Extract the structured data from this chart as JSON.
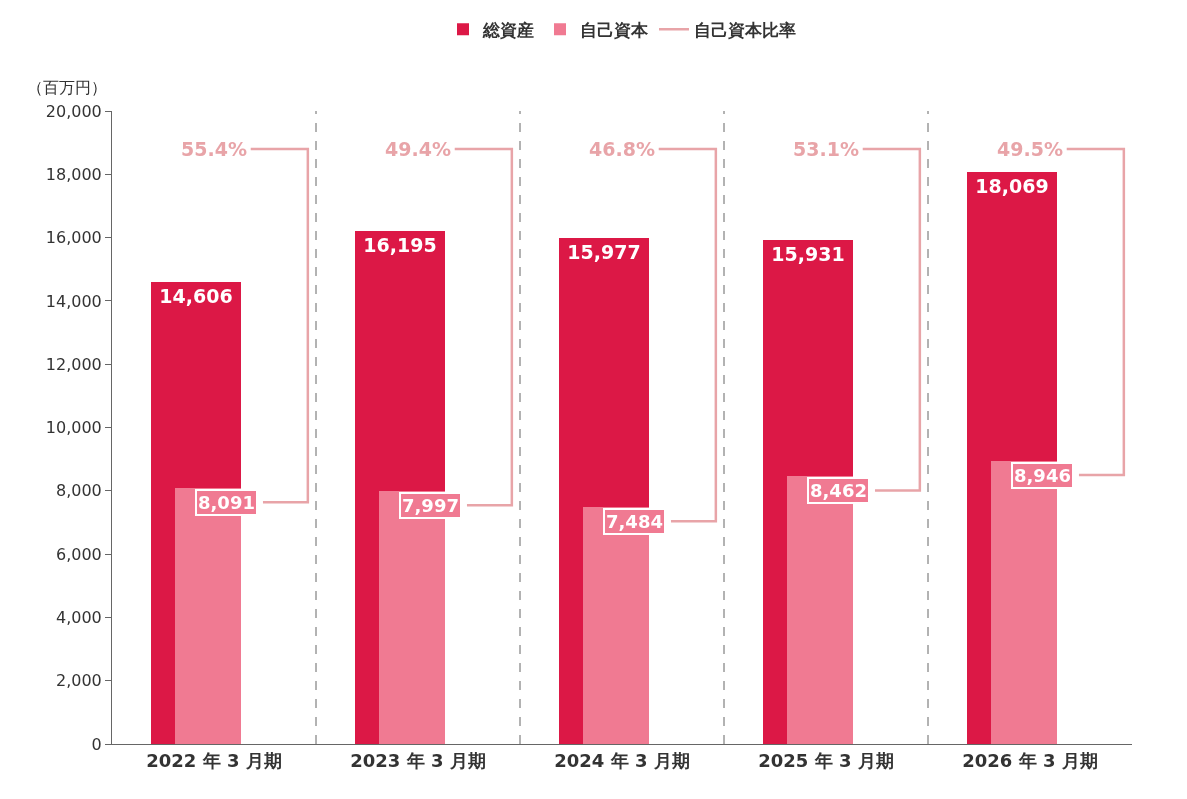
{
  "chart_data": {
    "type": "bar",
    "ylabel": "（百万円）",
    "categories": [
      "2022 年 3 月期",
      "2023 年 3 月期",
      "2024 年 3 月期",
      "2025 年 3 月期",
      "2026 年 3 月期"
    ],
    "series": [
      {
        "name": "総資産",
        "color": "#dc1846",
        "values": [
          14606,
          16195,
          15977,
          15931,
          18069
        ],
        "value_labels": [
          "14,606",
          "16,195",
          "15,977",
          "15,931",
          "18,069"
        ]
      },
      {
        "name": "自己資本",
        "color": "#f07a92",
        "values": [
          8091,
          7997,
          7484,
          8462,
          8946
        ],
        "value_labels": [
          "8,091",
          "7,997",
          "7,484",
          "8,462",
          "8,946"
        ]
      },
      {
        "name": "自己資本比率",
        "type": "line",
        "color": "#e8a4a8",
        "values": [
          null,
          null,
          null,
          null,
          null
        ]
      }
    ],
    "annotations": [
      "55.4%",
      "49.4%",
      "46.8%",
      "53.1%",
      "49.5%"
    ],
    "ylim": [
      0,
      20000
    ],
    "yticks": [
      0,
      {
        "value": 2000,
        "label": "2,000"
      },
      {
        "value": 4000,
        "label": "4,000"
      },
      {
        "value": 6000,
        "label": "6,000"
      },
      {
        "value": 8000,
        "label": "8,000"
      },
      {
        "value": 10000,
        "label": "10,000"
      },
      {
        "value": 12000,
        "label": "12,000"
      },
      {
        "value": 14000,
        "label": "14,000"
      },
      {
        "value": 16000,
        "label": "16,000"
      },
      {
        "value": 18000,
        "label": "18,000"
      },
      {
        "value": 20000,
        "label": "20,000"
      }
    ],
    "grid": "x",
    "legend": "top"
  }
}
